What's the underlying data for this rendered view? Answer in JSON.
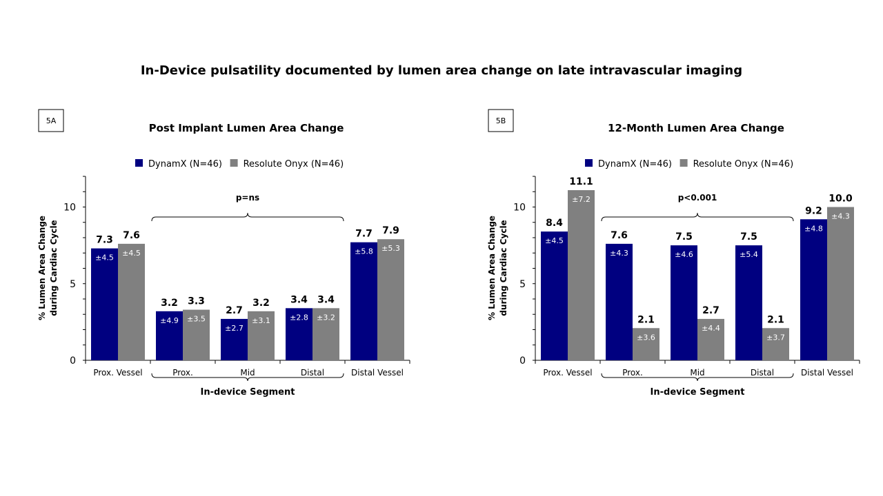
{
  "title": "In-Device pulsatility documented by lumen area change on late intravascular imaging",
  "colors": {
    "dynamx": "#000080",
    "onyx": "#808080",
    "axis": "#000000",
    "error_text": "#ffffff"
  },
  "chart_data": [
    {
      "type": "bar",
      "panel_label": "5A",
      "title": "Post Implant Lumen Area Change",
      "ylabel_line1": "% Lumen Area Change",
      "ylabel_line2": "during Cardiac Cycle",
      "xlabel": "In-device Segment",
      "ylim": [
        0,
        12
      ],
      "yticks": [
        "0",
        "5",
        "10"
      ],
      "categories": [
        "Prox. Vessel",
        "Prox.",
        "Mid",
        "Distal",
        "Distal Vessel"
      ],
      "series": [
        {
          "name": "DynamX (N=46)",
          "values": [
            7.3,
            3.2,
            2.7,
            3.4,
            7.7
          ],
          "labels": [
            "7.3",
            "3.2",
            "2.7",
            "3.4",
            "7.7"
          ],
          "sd": [
            "±4.5",
            "±4.9",
            "±2.7",
            "±2.8",
            "±5.8"
          ]
        },
        {
          "name": "Resolute Onyx (N=46)",
          "values": [
            7.6,
            3.3,
            3.2,
            3.4,
            7.9
          ],
          "labels": [
            "7.6",
            "3.3",
            "3.2",
            "3.4",
            "7.9"
          ],
          "sd": [
            "±4.5",
            "±3.5",
            "±3.1",
            "±3.2",
            "±5.3"
          ]
        }
      ],
      "bracket_label": "p=ns"
    },
    {
      "type": "bar",
      "panel_label": "5B",
      "title": "12-Month Lumen Area Change",
      "ylabel_line1": "% Lumen Area Change",
      "ylabel_line2": "during Cardiac Cycle",
      "xlabel": "In-device Segment",
      "ylim": [
        0,
        12
      ],
      "yticks": [
        "0",
        "5",
        "10"
      ],
      "categories": [
        "Prox. Vessel",
        "Prox.",
        "Mid",
        "Distal",
        "Distal Vessel"
      ],
      "series": [
        {
          "name": "DynamX (N=46)",
          "values": [
            8.4,
            7.6,
            7.5,
            7.5,
            9.2
          ],
          "labels": [
            "8.4",
            "7.6",
            "7.5",
            "7.5",
            "9.2"
          ],
          "sd": [
            "±4.5",
            "±4.3",
            "±4.6",
            "±5.4",
            "±4.8"
          ]
        },
        {
          "name": "Resolute Onyx (N=46)",
          "values": [
            11.1,
            2.1,
            2.7,
            2.1,
            10.0
          ],
          "labels": [
            "11.1",
            "2.1",
            "2.7",
            "2.1",
            "10.0"
          ],
          "sd": [
            "±7.2",
            "±3.6",
            "±4.4",
            "±3.7",
            "±4.3"
          ]
        }
      ],
      "bracket_label": "p<0.001"
    }
  ]
}
